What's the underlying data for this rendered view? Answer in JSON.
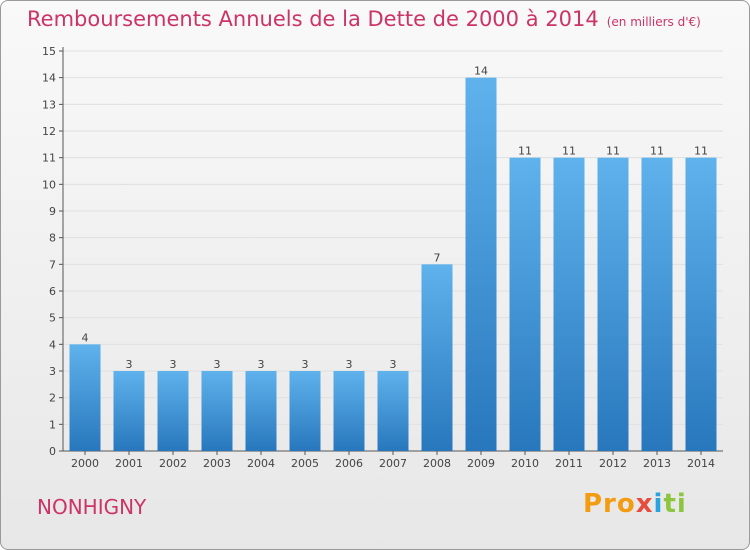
{
  "chart_data": {
    "type": "bar",
    "title": "Remboursements Annuels de la Dette de 2000 à 2014",
    "subtitle": "(en milliers d'€)",
    "categories": [
      "2000",
      "2001",
      "2002",
      "2003",
      "2004",
      "2005",
      "2006",
      "2007",
      "2008",
      "2009",
      "2010",
      "2011",
      "2012",
      "2013",
      "2014"
    ],
    "values": [
      4,
      3,
      3,
      3,
      3,
      3,
      3,
      3,
      7,
      14,
      11,
      11,
      11,
      11,
      11
    ],
    "ylim": [
      0,
      15
    ],
    "yticks": [
      0,
      1,
      2,
      3,
      4,
      5,
      6,
      7,
      8,
      9,
      10,
      11,
      12,
      13,
      14,
      15
    ],
    "xlabel": "",
    "ylabel": "",
    "grid": true
  },
  "commune": "NONHIGNY",
  "logo": {
    "p1": "Pro",
    "p2": "x",
    "p3": "i",
    "p4": "ti"
  },
  "colors": {
    "title": "#cc3366",
    "bar_light": "#5aaeea",
    "bar_dark": "#2a7bc1"
  }
}
